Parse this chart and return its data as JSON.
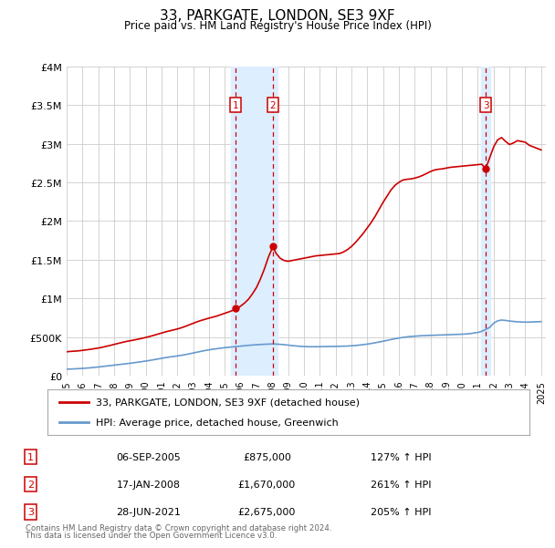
{
  "title": "33, PARKGATE, LONDON, SE3 9XF",
  "subtitle": "Price paid vs. HM Land Registry's House Price Index (HPI)",
  "legend_line1": "33, PARKGATE, LONDON, SE3 9XF (detached house)",
  "legend_line2": "HPI: Average price, detached house, Greenwich",
  "footer1": "Contains HM Land Registry data © Crown copyright and database right 2024.",
  "footer2": "This data is licensed under the Open Government Licence v3.0.",
  "sale_events": [
    {
      "label": "1",
      "date": "06-SEP-2005",
      "price": "£875,000",
      "hpi": "127% ↑ HPI",
      "x_year": 2005.67,
      "y_val": 875000
    },
    {
      "label": "2",
      "date": "17-JAN-2008",
      "price": "£1,670,000",
      "hpi": "261% ↑ HPI",
      "x_year": 2008.04,
      "y_val": 1670000
    },
    {
      "label": "3",
      "date": "28-JUN-2021",
      "price": "£2,675,000",
      "hpi": "205% ↑ HPI",
      "x_year": 2021.49,
      "y_val": 2675000
    }
  ],
  "xmin": 1995.0,
  "xmax": 2025.3,
  "ymin": 0,
  "ymax": 4000000,
  "yticks": [
    0,
    500000,
    1000000,
    1500000,
    2000000,
    2500000,
    3000000,
    3500000,
    4000000
  ],
  "ytick_labels": [
    "£0",
    "£500K",
    "£1M",
    "£1.5M",
    "£2M",
    "£2.5M",
    "£3M",
    "£3.5M",
    "£4M"
  ],
  "red_color": "#cc0000",
  "blue_color": "#6699cc",
  "shade_color": "#ddeeff",
  "grid_color": "#cccccc",
  "background_color": "#ffffff",
  "red_line": {
    "years": [
      1995.0,
      1995.25,
      1995.5,
      1995.75,
      1996.0,
      1996.25,
      1996.5,
      1996.75,
      1997.0,
      1997.25,
      1997.5,
      1997.75,
      1998.0,
      1998.25,
      1998.5,
      1998.75,
      1999.0,
      1999.25,
      1999.5,
      1999.75,
      2000.0,
      2000.25,
      2000.5,
      2000.75,
      2001.0,
      2001.25,
      2001.5,
      2001.75,
      2002.0,
      2002.25,
      2002.5,
      2002.75,
      2003.0,
      2003.25,
      2003.5,
      2003.75,
      2004.0,
      2004.25,
      2004.5,
      2004.75,
      2005.0,
      2005.25,
      2005.5,
      2005.67,
      2005.75,
      2006.0,
      2006.25,
      2006.5,
      2006.75,
      2007.0,
      2007.25,
      2007.5,
      2007.75,
      2008.04,
      2008.25,
      2008.5,
      2008.75,
      2009.0,
      2009.25,
      2009.5,
      2009.75,
      2010.0,
      2010.25,
      2010.5,
      2010.75,
      2011.0,
      2011.25,
      2011.5,
      2011.75,
      2012.0,
      2012.25,
      2012.5,
      2012.75,
      2013.0,
      2013.25,
      2013.5,
      2013.75,
      2014.0,
      2014.25,
      2014.5,
      2014.75,
      2015.0,
      2015.25,
      2015.5,
      2015.75,
      2016.0,
      2016.25,
      2016.5,
      2016.75,
      2017.0,
      2017.25,
      2017.5,
      2017.75,
      2018.0,
      2018.25,
      2018.5,
      2018.75,
      2019.0,
      2019.25,
      2019.5,
      2019.75,
      2020.0,
      2020.25,
      2020.5,
      2020.75,
      2021.0,
      2021.25,
      2021.49,
      2021.75,
      2022.0,
      2022.25,
      2022.5,
      2022.75,
      2023.0,
      2023.25,
      2023.5,
      2023.75,
      2024.0,
      2024.25,
      2024.5,
      2024.75,
      2025.0
    ],
    "values": [
      310000,
      315000,
      318000,
      322000,
      328000,
      335000,
      342000,
      350000,
      358000,
      368000,
      380000,
      392000,
      405000,
      418000,
      430000,
      442000,
      452000,
      462000,
      472000,
      483000,
      495000,
      508000,
      522000,
      537000,
      552000,
      567000,
      580000,
      592000,
      605000,
      620000,
      638000,
      658000,
      678000,
      698000,
      715000,
      730000,
      745000,
      758000,
      772000,
      790000,
      808000,
      825000,
      845000,
      875000,
      870000,
      900000,
      940000,
      990000,
      1060000,
      1140000,
      1250000,
      1380000,
      1530000,
      1670000,
      1580000,
      1520000,
      1490000,
      1480000,
      1490000,
      1500000,
      1510000,
      1520000,
      1530000,
      1540000,
      1550000,
      1555000,
      1560000,
      1565000,
      1570000,
      1575000,
      1580000,
      1600000,
      1630000,
      1670000,
      1720000,
      1780000,
      1840000,
      1910000,
      1980000,
      2060000,
      2150000,
      2240000,
      2320000,
      2400000,
      2460000,
      2500000,
      2530000,
      2540000,
      2545000,
      2555000,
      2570000,
      2590000,
      2615000,
      2640000,
      2660000,
      2670000,
      2675000,
      2685000,
      2695000,
      2700000,
      2705000,
      2710000,
      2715000,
      2720000,
      2725000,
      2730000,
      2735000,
      2675000,
      2820000,
      2960000,
      3050000,
      3080000,
      3030000,
      2990000,
      3010000,
      3040000,
      3030000,
      3020000,
      2980000,
      2960000,
      2940000,
      2920000
    ]
  },
  "blue_line": {
    "years": [
      1995.0,
      1995.25,
      1995.5,
      1995.75,
      1996.0,
      1996.25,
      1996.5,
      1996.75,
      1997.0,
      1997.25,
      1997.5,
      1997.75,
      1998.0,
      1998.25,
      1998.5,
      1998.75,
      1999.0,
      1999.25,
      1999.5,
      1999.75,
      2000.0,
      2000.25,
      2000.5,
      2000.75,
      2001.0,
      2001.25,
      2001.5,
      2001.75,
      2002.0,
      2002.25,
      2002.5,
      2002.75,
      2003.0,
      2003.25,
      2003.5,
      2003.75,
      2004.0,
      2004.25,
      2004.5,
      2004.75,
      2005.0,
      2005.25,
      2005.5,
      2005.75,
      2006.0,
      2006.25,
      2006.5,
      2006.75,
      2007.0,
      2007.25,
      2007.5,
      2007.75,
      2008.0,
      2008.25,
      2008.5,
      2008.75,
      2009.0,
      2009.25,
      2009.5,
      2009.75,
      2010.0,
      2010.25,
      2010.5,
      2010.75,
      2011.0,
      2011.25,
      2011.5,
      2011.75,
      2012.0,
      2012.25,
      2012.5,
      2012.75,
      2013.0,
      2013.25,
      2013.5,
      2013.75,
      2014.0,
      2014.25,
      2014.5,
      2014.75,
      2015.0,
      2015.25,
      2015.5,
      2015.75,
      2016.0,
      2016.25,
      2016.5,
      2016.75,
      2017.0,
      2017.25,
      2017.5,
      2017.75,
      2018.0,
      2018.25,
      2018.5,
      2018.75,
      2019.0,
      2019.25,
      2019.5,
      2019.75,
      2020.0,
      2020.25,
      2020.5,
      2020.75,
      2021.0,
      2021.25,
      2021.5,
      2021.75,
      2022.0,
      2022.25,
      2022.5,
      2022.75,
      2023.0,
      2023.25,
      2023.5,
      2023.75,
      2024.0,
      2024.25,
      2024.5,
      2024.75,
      2025.0
    ],
    "values": [
      85000,
      87000,
      89000,
      92000,
      95000,
      99000,
      103000,
      108000,
      113000,
      119000,
      125000,
      131000,
      137000,
      143000,
      149000,
      155000,
      161000,
      168000,
      175000,
      182000,
      190000,
      198000,
      207000,
      216000,
      225000,
      234000,
      242000,
      249000,
      256000,
      264000,
      273000,
      283000,
      294000,
      305000,
      316000,
      326000,
      335000,
      343000,
      350000,
      357000,
      363000,
      368000,
      373000,
      378000,
      383000,
      388000,
      393000,
      397000,
      401000,
      404000,
      407000,
      409000,
      411000,
      409000,
      406000,
      402000,
      396000,
      390000,
      385000,
      381000,
      378000,
      376000,
      375000,
      375000,
      376000,
      377000,
      378000,
      379000,
      380000,
      381000,
      382000,
      384000,
      387000,
      391000,
      396000,
      402000,
      409000,
      417000,
      426000,
      436000,
      446000,
      457000,
      468000,
      478000,
      487000,
      495000,
      502000,
      507000,
      511000,
      515000,
      518000,
      520000,
      522000,
      524000,
      526000,
      527000,
      529000,
      531000,
      533000,
      535000,
      537000,
      540000,
      545000,
      552000,
      560000,
      575000,
      600000,
      625000,
      680000,
      710000,
      720000,
      715000,
      708000,
      702000,
      698000,
      695000,
      693000,
      694000,
      696000,
      698000,
      700000
    ]
  }
}
